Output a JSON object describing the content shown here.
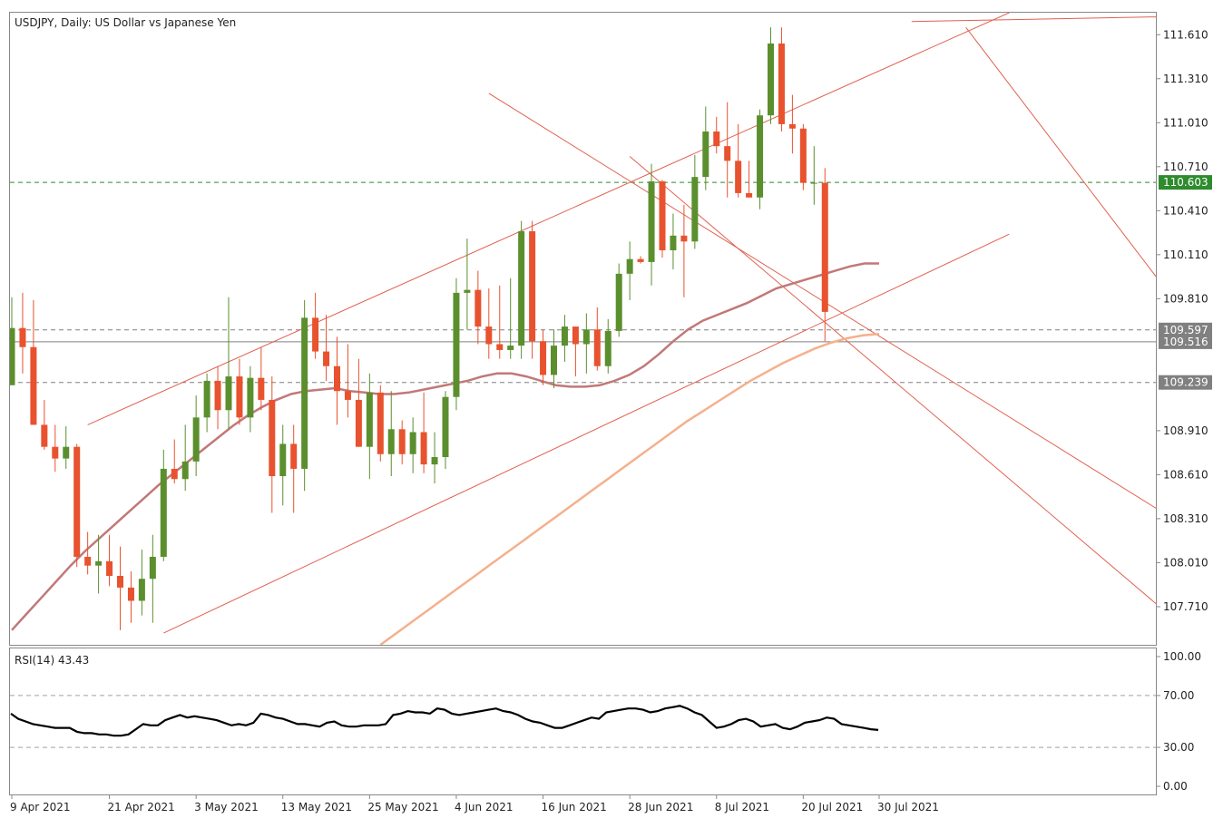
{
  "chart_data": [
    {
      "type": "candlestick",
      "title": "USDJPY, Daily:  US Dollar vs Japanese Yen",
      "ylim": [
        107.45,
        111.76
      ],
      "price_ticks": [
        "111.610",
        "111.310",
        "111.010",
        "110.710",
        "110.410",
        "110.110",
        "109.810",
        "108.910",
        "108.610",
        "108.310",
        "108.010",
        "107.710"
      ],
      "x_labels": [
        {
          "label": "9 Apr 2021",
          "bar": 0
        },
        {
          "label": "21 Apr 2021",
          "bar": 9
        },
        {
          "label": "3 May 2021",
          "bar": 17
        },
        {
          "label": "13 May 2021",
          "bar": 25
        },
        {
          "label": "25 May 2021",
          "bar": 33
        },
        {
          "label": "4 Jun 2021",
          "bar": 41
        },
        {
          "label": "16 Jun 2021",
          "bar": 49
        },
        {
          "label": "28 Jun 2021",
          "bar": 57
        },
        {
          "label": "8 Jul 2021",
          "bar": 65
        },
        {
          "label": "20 Jul 2021",
          "bar": 73
        },
        {
          "label": "30 Jul 2021",
          "bar": 80
        }
      ],
      "candles": [
        {
          "o": 109.22,
          "h": 109.82,
          "l": 109.22,
          "c": 109.61
        },
        {
          "o": 109.61,
          "h": 109.85,
          "l": 109.3,
          "c": 109.48
        },
        {
          "o": 109.48,
          "h": 109.8,
          "l": 108.95,
          "c": 108.95
        },
        {
          "o": 108.95,
          "h": 109.12,
          "l": 108.78,
          "c": 108.8
        },
        {
          "o": 108.8,
          "h": 108.95,
          "l": 108.63,
          "c": 108.72
        },
        {
          "o": 108.72,
          "h": 108.94,
          "l": 108.65,
          "c": 108.8
        },
        {
          "o": 108.8,
          "h": 108.82,
          "l": 107.98,
          "c": 108.05
        },
        {
          "o": 108.05,
          "h": 108.22,
          "l": 107.93,
          "c": 107.99
        },
        {
          "o": 107.99,
          "h": 108.2,
          "l": 107.8,
          "c": 108.02
        },
        {
          "o": 108.02,
          "h": 108.2,
          "l": 107.85,
          "c": 107.92
        },
        {
          "o": 107.92,
          "h": 108.12,
          "l": 107.55,
          "c": 107.84
        },
        {
          "o": 107.84,
          "h": 107.95,
          "l": 107.6,
          "c": 107.75
        },
        {
          "o": 107.75,
          "h": 108.1,
          "l": 107.65,
          "c": 107.9
        },
        {
          "o": 107.9,
          "h": 108.2,
          "l": 107.6,
          "c": 108.05
        },
        {
          "o": 108.05,
          "h": 108.78,
          "l": 108.02,
          "c": 108.65
        },
        {
          "o": 108.65,
          "h": 108.85,
          "l": 108.55,
          "c": 108.58
        },
        {
          "o": 108.58,
          "h": 108.95,
          "l": 108.5,
          "c": 108.7
        },
        {
          "o": 108.7,
          "h": 109.15,
          "l": 108.6,
          "c": 109.0
        },
        {
          "o": 109.0,
          "h": 109.3,
          "l": 108.9,
          "c": 109.25
        },
        {
          "o": 109.25,
          "h": 109.35,
          "l": 108.92,
          "c": 109.05
        },
        {
          "o": 109.05,
          "h": 109.82,
          "l": 108.92,
          "c": 109.28
        },
        {
          "o": 109.28,
          "h": 109.4,
          "l": 108.95,
          "c": 109.0
        },
        {
          "o": 109.0,
          "h": 109.35,
          "l": 108.9,
          "c": 109.27
        },
        {
          "o": 109.27,
          "h": 109.48,
          "l": 109.05,
          "c": 109.12
        },
        {
          "o": 109.12,
          "h": 109.28,
          "l": 108.35,
          "c": 108.6
        },
        {
          "o": 108.6,
          "h": 108.95,
          "l": 108.4,
          "c": 108.82
        },
        {
          "o": 108.82,
          "h": 108.95,
          "l": 108.35,
          "c": 108.65
        },
        {
          "o": 108.65,
          "h": 109.8,
          "l": 108.5,
          "c": 109.68
        },
        {
          "o": 109.68,
          "h": 109.85,
          "l": 109.4,
          "c": 109.45
        },
        {
          "o": 109.45,
          "h": 109.7,
          "l": 109.25,
          "c": 109.35
        },
        {
          "o": 109.35,
          "h": 109.55,
          "l": 108.95,
          "c": 109.18
        },
        {
          "o": 109.18,
          "h": 109.5,
          "l": 109.0,
          "c": 109.12
        },
        {
          "o": 109.12,
          "h": 109.4,
          "l": 108.8,
          "c": 108.8
        },
        {
          "o": 108.8,
          "h": 109.3,
          "l": 108.58,
          "c": 109.17
        },
        {
          "o": 109.17,
          "h": 109.22,
          "l": 108.7,
          "c": 108.75
        },
        {
          "o": 108.75,
          "h": 109.18,
          "l": 108.6,
          "c": 108.92
        },
        {
          "o": 108.92,
          "h": 108.98,
          "l": 108.68,
          "c": 108.75
        },
        {
          "o": 108.75,
          "h": 109.0,
          "l": 108.62,
          "c": 108.9
        },
        {
          "o": 108.9,
          "h": 109.17,
          "l": 108.62,
          "c": 108.68
        },
        {
          "o": 108.68,
          "h": 108.9,
          "l": 108.55,
          "c": 108.73
        },
        {
          "o": 108.73,
          "h": 109.18,
          "l": 108.65,
          "c": 109.14
        },
        {
          "o": 109.14,
          "h": 109.95,
          "l": 109.05,
          "c": 109.85
        },
        {
          "o": 109.85,
          "h": 110.22,
          "l": 109.6,
          "c": 109.87
        },
        {
          "o": 109.87,
          "h": 110.0,
          "l": 109.5,
          "c": 109.62
        },
        {
          "o": 109.62,
          "h": 109.88,
          "l": 109.4,
          "c": 109.5
        },
        {
          "o": 109.5,
          "h": 109.9,
          "l": 109.4,
          "c": 109.46
        },
        {
          "o": 109.46,
          "h": 109.95,
          "l": 109.4,
          "c": 109.49
        },
        {
          "o": 109.49,
          "h": 110.34,
          "l": 109.4,
          "c": 110.27
        },
        {
          "o": 110.27,
          "h": 110.34,
          "l": 109.4,
          "c": 109.52
        },
        {
          "o": 109.52,
          "h": 109.6,
          "l": 109.22,
          "c": 109.29
        },
        {
          "o": 109.29,
          "h": 109.6,
          "l": 109.2,
          "c": 109.49
        },
        {
          "o": 109.49,
          "h": 109.7,
          "l": 109.38,
          "c": 109.62
        },
        {
          "o": 109.62,
          "h": 109.62,
          "l": 109.28,
          "c": 109.5
        },
        {
          "o": 109.5,
          "h": 109.71,
          "l": 109.3,
          "c": 109.6
        },
        {
          "o": 109.6,
          "h": 109.75,
          "l": 109.32,
          "c": 109.35
        },
        {
          "o": 109.35,
          "h": 109.67,
          "l": 109.3,
          "c": 109.59
        },
        {
          "o": 109.59,
          "h": 110.05,
          "l": 109.55,
          "c": 109.98
        },
        {
          "o": 109.98,
          "h": 110.2,
          "l": 109.8,
          "c": 110.08
        },
        {
          "o": 110.08,
          "h": 110.1,
          "l": 110.05,
          "c": 110.06
        },
        {
          "o": 110.06,
          "h": 110.73,
          "l": 109.9,
          "c": 110.61
        },
        {
          "o": 110.61,
          "h": 110.62,
          "l": 110.09,
          "c": 110.14
        },
        {
          "o": 110.14,
          "h": 110.39,
          "l": 110.01,
          "c": 110.24
        },
        {
          "o": 110.24,
          "h": 110.45,
          "l": 109.82,
          "c": 110.2
        },
        {
          "o": 110.2,
          "h": 110.79,
          "l": 110.15,
          "c": 110.64
        },
        {
          "o": 110.64,
          "h": 111.12,
          "l": 110.55,
          "c": 110.95
        },
        {
          "o": 110.95,
          "h": 111.05,
          "l": 110.8,
          "c": 110.85
        },
        {
          "o": 110.85,
          "h": 111.15,
          "l": 110.5,
          "c": 110.75
        },
        {
          "o": 110.75,
          "h": 111.0,
          "l": 110.5,
          "c": 110.53
        },
        {
          "o": 110.53,
          "h": 110.75,
          "l": 110.5,
          "c": 110.5
        },
        {
          "o": 110.5,
          "h": 111.1,
          "l": 110.42,
          "c": 111.06
        },
        {
          "o": 111.06,
          "h": 111.66,
          "l": 111.0,
          "c": 111.55
        },
        {
          "o": 111.55,
          "h": 111.66,
          "l": 110.95,
          "c": 111.0
        },
        {
          "o": 111.0,
          "h": 111.2,
          "l": 110.8,
          "c": 110.97
        },
        {
          "o": 110.97,
          "h": 111.0,
          "l": 110.55,
          "c": 110.6
        },
        {
          "o": 110.6,
          "h": 110.85,
          "l": 110.45,
          "c": 110.6
        },
        {
          "o": 110.6,
          "h": 110.7,
          "l": 109.52,
          "c": 109.72
        }
      ],
      "moving_averages": [
        {
          "color": "#c27878",
          "values": [
            107.55,
            107.66,
            107.77,
            107.88,
            107.99,
            108.09,
            108.18,
            108.27,
            108.36,
            108.45,
            108.54,
            108.62,
            108.7,
            108.78,
            108.86,
            108.94,
            109.01,
            109.07,
            109.12,
            109.16,
            109.18,
            109.19,
            109.2,
            109.18,
            109.17,
            109.16,
            109.16,
            109.17,
            109.19,
            109.21,
            109.23,
            109.25,
            109.28,
            109.3,
            109.3,
            109.28,
            109.25,
            109.22,
            109.21,
            109.21,
            109.22,
            109.25,
            109.29,
            109.35,
            109.43,
            109.52,
            109.6,
            109.66,
            109.7,
            109.74,
            109.78,
            109.83,
            109.88,
            109.91,
            109.94,
            109.97,
            110.0,
            110.03,
            110.05,
            110.05
          ]
        },
        {
          "color": "#f5b08c",
          "values": [
            107.45,
            107.53,
            107.61,
            107.69,
            107.77,
            107.85,
            107.93,
            108.01,
            108.09,
            108.17,
            108.25,
            108.33,
            108.41,
            108.49,
            108.57,
            108.65,
            108.73,
            108.81,
            108.89,
            108.97,
            109.04,
            109.11,
            109.18,
            109.25,
            109.31,
            109.37,
            109.42,
            109.47,
            109.51,
            109.54,
            109.56,
            109.57
          ]
        }
      ],
      "horizontal_levels": [
        {
          "value": 110.603,
          "label": "110.603",
          "style": "dashed",
          "color": "#2e8b2e"
        },
        {
          "value": 109.597,
          "label": "109.597",
          "style": "dashed",
          "color": "#808080"
        },
        {
          "value": 109.516,
          "label": "109.516",
          "style": "solid",
          "color": "#808080"
        },
        {
          "value": 109.239,
          "label": "109.239",
          "style": "dashed",
          "color": "#808080"
        }
      ],
      "trend_lines": [
        {
          "from": {
            "bar": 7,
            "price": 108.95
          },
          "to": {
            "bar": 92,
            "price": 111.76
          }
        },
        {
          "from": {
            "bar": 14,
            "price": 107.53
          },
          "to": {
            "bar": 92,
            "price": 110.25
          }
        },
        {
          "from": {
            "bar": 44,
            "price": 111.21
          },
          "to": {
            "bar": 116,
            "price": 107.9
          }
        },
        {
          "from": {
            "bar": 83,
            "price": 111.7
          },
          "to": {
            "bar": 126,
            "price": 111.76
          }
        },
        {
          "from": {
            "bar": 57,
            "price": 110.78
          },
          "to": {
            "bar": 110,
            "price": 107.45
          }
        },
        {
          "from": {
            "bar": 88,
            "price": 111.66
          },
          "to": {
            "bar": 117,
            "price": 108.85
          }
        }
      ],
      "colors": {
        "bull": "#5b8f2e",
        "bear": "#e8522e",
        "trend": "#e06050",
        "frame": "#888888",
        "grid_green": "#2e8b2e",
        "label_bg": "#808080"
      }
    },
    {
      "type": "line",
      "title": "RSI(14) 43.43",
      "ylim": [
        0,
        100
      ],
      "ticks": [
        "100.00",
        "70.00",
        "30.00",
        "0.00"
      ],
      "levels": [
        70,
        30
      ],
      "series": [
        {
          "color": "#000000",
          "values": [
            56,
            52,
            50,
            48,
            47,
            46,
            45,
            45,
            45,
            42,
            41,
            41,
            40,
            40,
            39,
            39,
            40,
            44,
            48,
            47,
            47,
            51,
            53,
            55,
            53,
            54,
            53,
            52,
            51,
            49,
            47,
            48,
            47,
            49,
            56,
            55,
            53,
            52,
            50,
            48,
            48,
            47,
            46,
            49,
            50,
            47,
            46,
            46,
            47,
            47,
            47,
            48,
            55,
            56,
            58,
            57,
            57,
            56,
            60,
            59,
            56,
            55,
            56,
            57,
            58,
            59,
            60,
            58,
            57,
            55,
            52,
            50,
            49,
            47,
            45,
            45,
            47,
            49,
            51,
            53,
            52,
            57,
            58,
            59,
            60,
            60,
            59,
            57,
            58,
            60,
            61,
            62,
            60,
            57,
            55,
            50,
            45,
            46,
            48,
            51,
            52,
            50,
            46,
            47,
            48,
            45,
            44,
            46,
            49,
            50,
            51,
            53,
            52,
            48,
            47,
            46,
            45,
            44,
            43.43
          ]
        }
      ]
    }
  ]
}
